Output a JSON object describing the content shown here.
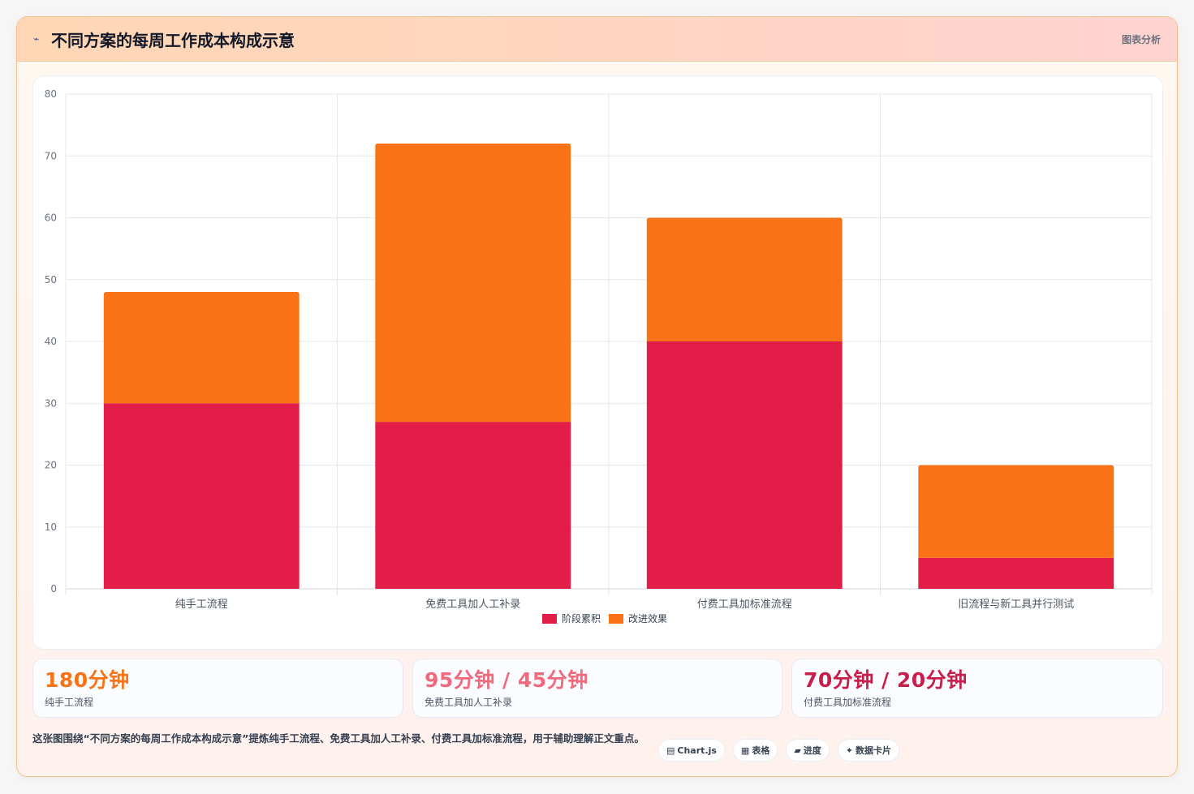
{
  "header": {
    "icon": "chart-line-icon",
    "title": "不同方案的每周工作成本构成示意",
    "tag": "图表分析"
  },
  "chart_data": {
    "type": "bar",
    "stacked": true,
    "categories": [
      "纯手工流程",
      "免费工具加人工补录",
      "付费工具加标准流程",
      "旧流程与新工具并行测试"
    ],
    "series": [
      {
        "name": "阶段累积",
        "color": "#e11d48",
        "values": [
          30,
          27,
          40,
          5
        ]
      },
      {
        "name": "改进效果",
        "color": "#f97316",
        "values": [
          18,
          45,
          20,
          15
        ]
      }
    ],
    "ylim": [
      0,
      80
    ],
    "yticks": [
      0,
      10,
      20,
      30,
      40,
      50,
      60,
      70,
      80
    ],
    "grid": true,
    "legend": "bottom"
  },
  "stats": [
    {
      "value": "180分钟",
      "label": "纯手工流程",
      "color": "#f97316"
    },
    {
      "value": "95分钟 / 45分钟",
      "label": "免费工具加人工补录",
      "color": "#f0697c"
    },
    {
      "value": "70分钟 / 20分钟",
      "label": "付费工具加标准流程",
      "color": "#c81e4a"
    }
  ],
  "footer": {
    "text": "这张图围绕“不同方案的每周工作成本构成示意”提炼纯手工流程、免费工具加人工补录、付费工具加标准流程，用于辅助理解正文重点。",
    "pills": [
      {
        "icon": "chart-icon",
        "glyph": "▤",
        "label": "Chart.js"
      },
      {
        "icon": "table-icon",
        "glyph": "▦",
        "label": "表格"
      },
      {
        "icon": "progress-icon",
        "glyph": "▰",
        "label": "进度"
      },
      {
        "icon": "sparkle-icon",
        "glyph": "✦",
        "label": "数据卡片"
      }
    ]
  }
}
